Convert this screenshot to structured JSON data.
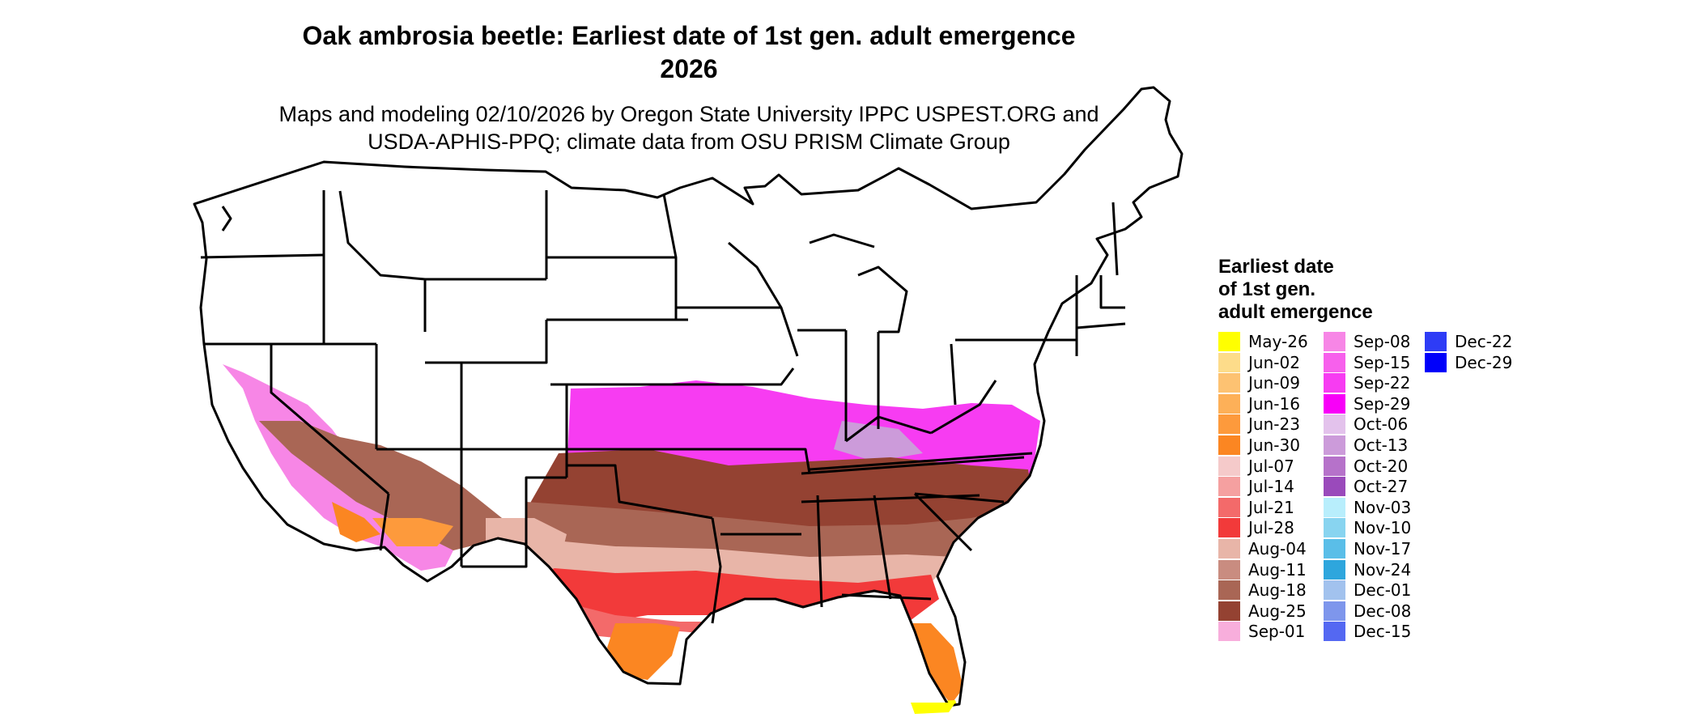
{
  "map": {
    "title_line1": "Oak ambrosia beetle: Earliest date of 1st gen. adult emergence",
    "title_line2": "2026",
    "subtitle_line1": "Maps and modeling 02/10/2026 by Oregon State University IPPC USPEST.ORG and",
    "subtitle_line2": "USDA-APHIS-PPQ; climate data from OSU PRISM Climate Group"
  },
  "legend": {
    "title_line1": "Earliest date",
    "title_line2": "of 1st gen.",
    "title_line3": "adult emergence",
    "items": [
      {
        "label": "May-26",
        "color": "#FFFF00"
      },
      {
        "label": "Jun-02",
        "color": "#FDDC8A"
      },
      {
        "label": "Jun-09",
        "color": "#FDC272"
      },
      {
        "label": "Jun-16",
        "color": "#FDB058"
      },
      {
        "label": "Jun-23",
        "color": "#FD9A3C"
      },
      {
        "label": "Jun-30",
        "color": "#FB8622"
      },
      {
        "label": "Jul-07",
        "color": "#F5CACA"
      },
      {
        "label": "Jul-14",
        "color": "#F5A0A0"
      },
      {
        "label": "Jul-21",
        "color": "#F36A6A"
      },
      {
        "label": "Jul-28",
        "color": "#F23A3A"
      },
      {
        "label": "Aug-04",
        "color": "#E8B5A8"
      },
      {
        "label": "Aug-11",
        "color": "#C98C80"
      },
      {
        "label": "Aug-18",
        "color": "#A96655"
      },
      {
        "label": "Aug-25",
        "color": "#944232"
      },
      {
        "label": "Sep-01",
        "color": "#F8AEDC"
      },
      {
        "label": "Sep-08",
        "color": "#F786E6"
      },
      {
        "label": "Sep-15",
        "color": "#F760EC"
      },
      {
        "label": "Sep-22",
        "color": "#F73CF2"
      },
      {
        "label": "Sep-29",
        "color": "#F800F8"
      },
      {
        "label": "Oct-06",
        "color": "#E3C2EC"
      },
      {
        "label": "Oct-13",
        "color": "#CC9BDA"
      },
      {
        "label": "Oct-20",
        "color": "#B672CA"
      },
      {
        "label": "Oct-27",
        "color": "#9A4ABB"
      },
      {
        "label": "Nov-03",
        "color": "#B8EEFC"
      },
      {
        "label": "Nov-10",
        "color": "#88D4F0"
      },
      {
        "label": "Nov-17",
        "color": "#5ABEE8"
      },
      {
        "label": "Nov-24",
        "color": "#2EA6DD"
      },
      {
        "label": "Dec-01",
        "color": "#A2C2EE"
      },
      {
        "label": "Dec-08",
        "color": "#7E96EC"
      },
      {
        "label": "Dec-15",
        "color": "#5468F2"
      },
      {
        "label": "Dec-22",
        "color": "#2E3CF6"
      },
      {
        "label": "Dec-29",
        "color": "#0000FA"
      }
    ]
  }
}
